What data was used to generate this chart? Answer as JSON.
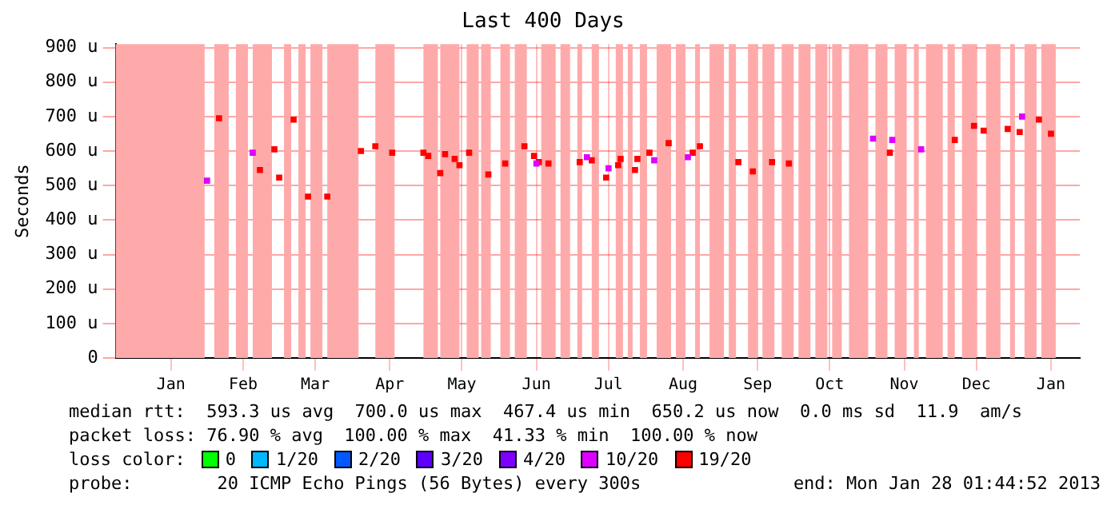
{
  "chart_data": {
    "type": "scatter",
    "title": "Last 400 Days",
    "ylabel": "Seconds",
    "legend_title": "loss color:",
    "legend": "bottom",
    "grid": true,
    "marker": "square",
    "xlim": [
      "2011-12-24",
      "2013-01-28"
    ],
    "xticks": [
      {
        "value": "2012-01-16",
        "label": "Jan"
      },
      {
        "value": "2012-02-15",
        "label": "Feb"
      },
      {
        "value": "2012-03-16",
        "label": "Mar"
      },
      {
        "value": "2012-04-16",
        "label": "Apr"
      },
      {
        "value": "2012-05-16",
        "label": "May"
      },
      {
        "value": "2012-06-16",
        "label": "Jun"
      },
      {
        "value": "2012-07-16",
        "label": "Jul"
      },
      {
        "value": "2012-08-16",
        "label": "Aug"
      },
      {
        "value": "2012-09-16",
        "label": "Sep"
      },
      {
        "value": "2012-10-16",
        "label": "Oct"
      },
      {
        "value": "2012-11-16",
        "label": "Nov"
      },
      {
        "value": "2012-12-16",
        "label": "Dec"
      },
      {
        "value": "2013-01-16",
        "label": "Jan"
      }
    ],
    "ylim": [
      0,
      910
    ],
    "yticks": [
      0,
      {
        "value": 100,
        "label": "100 u"
      },
      {
        "value": 200,
        "label": "200 u"
      },
      {
        "value": 300,
        "label": "300 u"
      },
      {
        "value": 400,
        "label": "400 u"
      },
      {
        "value": 500,
        "label": "500 u"
      },
      {
        "value": 600,
        "label": "600 u"
      },
      {
        "value": 700,
        "label": "700 u"
      },
      {
        "value": 800,
        "label": "800 u"
      },
      {
        "value": 900,
        "label": "900 u"
      }
    ],
    "series": [
      {
        "name": "0",
        "color": "#00ff00"
      },
      {
        "name": "1/20",
        "color": "#00b8ff"
      },
      {
        "name": "2/20",
        "color": "#0059ff"
      },
      {
        "name": "3/20",
        "color": "#5e00ff"
      },
      {
        "name": "4/20",
        "color": "#7e00ff"
      },
      {
        "name": "10/20",
        "color": "#dd00ff",
        "x": [
          "2012-01-31",
          "2012-02-19",
          "2012-06-16",
          "2012-07-07",
          "2012-07-16",
          "2012-08-04",
          "2012-08-18",
          "2012-11-03",
          "2012-11-11",
          "2012-11-23",
          "2013-01-04"
        ],
        "values": [
          514,
          595,
          564,
          582,
          550,
          573,
          582,
          636,
          632,
          605,
          700
        ]
      },
      {
        "name": "19/20",
        "color": "#ff0000",
        "x": [
          "2012-02-05",
          "2012-02-22",
          "2012-02-28",
          "2012-03-01",
          "2012-03-07",
          "2012-03-13",
          "2012-03-21",
          "2012-04-04",
          "2012-04-10",
          "2012-04-17",
          "2012-04-30",
          "2012-05-02",
          "2012-05-07",
          "2012-05-09",
          "2012-05-13",
          "2012-05-15",
          "2012-05-19",
          "2012-05-27",
          "2012-06-03",
          "2012-06-11",
          "2012-06-15",
          "2012-06-17",
          "2012-06-21",
          "2012-07-04",
          "2012-07-09",
          "2012-07-15",
          "2012-07-20",
          "2012-07-21",
          "2012-07-27",
          "2012-07-28",
          "2012-08-02",
          "2012-08-10",
          "2012-08-20",
          "2012-08-23",
          "2012-09-08",
          "2012-09-14",
          "2012-09-22",
          "2012-09-29",
          "2012-11-10",
          "2012-12-07",
          "2012-12-15",
          "2012-12-19",
          "2012-12-29",
          "2013-01-03",
          "2013-01-11",
          "2013-01-16"
        ],
        "values": [
          695,
          545,
          605,
          523,
          691,
          468,
          468,
          600,
          614,
          595,
          595,
          586,
          536,
          591,
          577,
          559,
          595,
          532,
          564,
          614,
          586,
          568,
          564,
          568,
          573,
          523,
          559,
          577,
          545,
          577,
          595,
          623,
          595,
          614,
          568,
          541,
          568,
          564,
          595,
          632,
          673,
          659,
          664,
          655,
          691,
          650
        ]
      }
    ],
    "bands": [
      {
        "axis": "x",
        "from": "2011-12-24",
        "to": "2012-01-30",
        "color": "#ffaaaa"
      },
      {
        "axis": "x",
        "from": "2012-02-03",
        "to": "2012-02-09",
        "color": "#ffaaaa"
      },
      {
        "axis": "x",
        "from": "2012-02-12",
        "to": "2012-02-17",
        "color": "#ffaaaa"
      },
      {
        "axis": "x",
        "from": "2012-02-19",
        "to": "2012-02-27",
        "color": "#ffaaaa"
      },
      {
        "axis": "x",
        "from": "2012-03-03",
        "to": "2012-03-06",
        "color": "#ffaaaa"
      },
      {
        "axis": "x",
        "from": "2012-03-09",
        "to": "2012-03-12",
        "color": "#ffaaaa"
      },
      {
        "axis": "x",
        "from": "2012-03-14",
        "to": "2012-03-19",
        "color": "#ffaaaa"
      },
      {
        "axis": "x",
        "from": "2012-03-21",
        "to": "2012-04-03",
        "color": "#ffaaaa"
      },
      {
        "axis": "x",
        "from": "2012-04-10",
        "to": "2012-04-18",
        "color": "#ffaaaa"
      },
      {
        "axis": "x",
        "from": "2012-04-30",
        "to": "2012-05-06",
        "color": "#ffaaaa"
      },
      {
        "axis": "x",
        "from": "2012-05-07",
        "to": "2012-05-15",
        "color": "#ffaaaa"
      },
      {
        "axis": "x",
        "from": "2012-05-18",
        "to": "2012-05-23",
        "color": "#ffaaaa"
      },
      {
        "axis": "x",
        "from": "2012-05-24",
        "to": "2012-05-28",
        "color": "#ffaaaa"
      },
      {
        "axis": "x",
        "from": "2012-06-01",
        "to": "2012-06-05",
        "color": "#ffaaaa"
      },
      {
        "axis": "x",
        "from": "2012-06-07",
        "to": "2012-06-12",
        "color": "#ffaaaa"
      },
      {
        "axis": "x",
        "from": "2012-06-18",
        "to": "2012-06-24",
        "color": "#ffaaaa"
      },
      {
        "axis": "x",
        "from": "2012-06-26",
        "to": "2012-06-30",
        "color": "#ffaaaa"
      },
      {
        "axis": "x",
        "from": "2012-07-03",
        "to": "2012-07-05",
        "color": "#ffaaaa"
      },
      {
        "axis": "x",
        "from": "2012-07-09",
        "to": "2012-07-12",
        "color": "#ffaaaa"
      },
      {
        "axis": "x",
        "from": "2012-07-19",
        "to": "2012-07-22",
        "color": "#ffaaaa"
      },
      {
        "axis": "x",
        "from": "2012-07-24",
        "to": "2012-07-26",
        "color": "#ffaaaa"
      },
      {
        "axis": "x",
        "from": "2012-07-29",
        "to": "2012-08-01",
        "color": "#ffaaaa"
      },
      {
        "axis": "x",
        "from": "2012-08-05",
        "to": "2012-08-11",
        "color": "#ffaaaa"
      },
      {
        "axis": "x",
        "from": "2012-08-13",
        "to": "2012-08-17",
        "color": "#ffaaaa"
      },
      {
        "axis": "x",
        "from": "2012-08-21",
        "to": "2012-08-23",
        "color": "#ffaaaa"
      },
      {
        "axis": "x",
        "from": "2012-08-27",
        "to": "2012-09-02",
        "color": "#ffaaaa"
      },
      {
        "axis": "x",
        "from": "2012-09-04",
        "to": "2012-09-07",
        "color": "#ffaaaa"
      },
      {
        "axis": "x",
        "from": "2012-09-12",
        "to": "2012-09-16",
        "color": "#ffaaaa"
      },
      {
        "axis": "x",
        "from": "2012-09-18",
        "to": "2012-09-23",
        "color": "#ffaaaa"
      },
      {
        "axis": "x",
        "from": "2012-09-26",
        "to": "2012-10-01",
        "color": "#ffaaaa"
      },
      {
        "axis": "x",
        "from": "2012-10-03",
        "to": "2012-10-08",
        "color": "#ffaaaa"
      },
      {
        "axis": "x",
        "from": "2012-10-10",
        "to": "2012-10-15",
        "color": "#ffaaaa"
      },
      {
        "axis": "x",
        "from": "2012-10-17",
        "to": "2012-10-21",
        "color": "#ffaaaa"
      },
      {
        "axis": "x",
        "from": "2012-10-24",
        "to": "2012-11-01",
        "color": "#ffaaaa"
      },
      {
        "axis": "x",
        "from": "2012-11-04",
        "to": "2012-11-09",
        "color": "#ffaaaa"
      },
      {
        "axis": "x",
        "from": "2012-11-12",
        "to": "2012-11-17",
        "color": "#ffaaaa"
      },
      {
        "axis": "x",
        "from": "2012-11-20",
        "to": "2012-11-22",
        "color": "#ffaaaa"
      },
      {
        "axis": "x",
        "from": "2012-11-25",
        "to": "2012-12-02",
        "color": "#ffaaaa"
      },
      {
        "axis": "x",
        "from": "2012-12-04",
        "to": "2012-12-07",
        "color": "#ffaaaa"
      },
      {
        "axis": "x",
        "from": "2012-12-10",
        "to": "2012-12-16",
        "color": "#ffaaaa"
      },
      {
        "axis": "x",
        "from": "2012-12-20",
        "to": "2012-12-26",
        "color": "#ffaaaa"
      },
      {
        "axis": "x",
        "from": "2012-12-30",
        "to": "2013-01-01",
        "color": "#ffaaaa"
      },
      {
        "axis": "x",
        "from": "2013-01-05",
        "to": "2013-01-10",
        "color": "#ffaaaa"
      },
      {
        "axis": "x",
        "from": "2013-01-12",
        "to": "2013-01-18",
        "color": "#ffaaaa"
      }
    ],
    "annotations": [
      "median rtt:  593.3 us avg  700.0 us max  467.4 us min  650.2 us now  0.0 ms sd  11.9  am/s",
      "packet loss: 76.90 % avg  100.00 % max  41.33 % min  100.00 % now",
      "probe:        20 ICMP Echo Pings (56 Bytes) every 300s",
      "end: Mon Jan 28 01:44:52 2013"
    ]
  }
}
